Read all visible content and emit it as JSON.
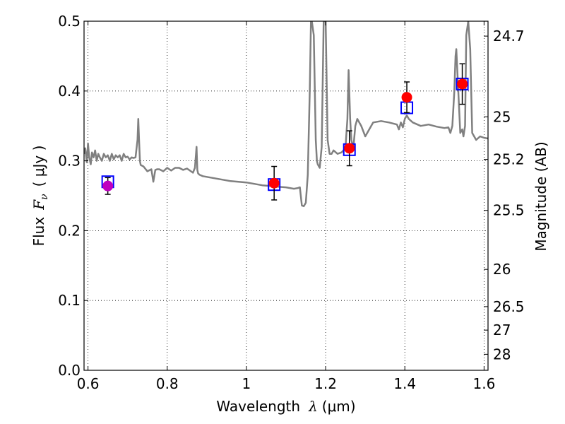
{
  "chart_data": {
    "type": "scatter",
    "xlabel": {
      "text": "Wavelength",
      "symbol": "λ",
      "unit": "(μm)"
    },
    "ylabel": {
      "text": "Flux",
      "symbol": "F",
      "subscript": "ν",
      "unit": "( μJy )"
    },
    "right_label": "Magnitude (AB)",
    "xlim": [
      0.59,
      1.61
    ],
    "ylim": [
      0.0,
      0.5
    ],
    "grid": true,
    "x_ticks": [
      0.6,
      0.8,
      1.0,
      1.2,
      1.4,
      1.6
    ],
    "x_tick_labels": [
      "0.6",
      "0.8",
      "1",
      "1.2",
      "1.4",
      "1.6"
    ],
    "y_ticks": [
      0.0,
      0.1,
      0.2,
      0.3,
      0.4,
      0.5
    ],
    "y_tick_labels": [
      "0.0",
      "0.1",
      "0.2",
      "0.3",
      "0.4",
      "0.5"
    ],
    "right_ticks": [
      24.7,
      25,
      25.2,
      25.5,
      26,
      26.5,
      27,
      28
    ],
    "right_tick_labels": [
      "24.7",
      "25",
      "25.2",
      "25.5",
      "26",
      "26.5",
      "27",
      "28"
    ],
    "colors": {
      "model": "#808080",
      "measured": "#ff0000",
      "optical": "#bf00bf",
      "model_box": "#0000ff",
      "errorbar": "#000000"
    },
    "model_spectrum": {
      "x": [
        0.59,
        0.593,
        0.597,
        0.6,
        0.603,
        0.607,
        0.61,
        0.614,
        0.618,
        0.622,
        0.626,
        0.63,
        0.635,
        0.64,
        0.645,
        0.65,
        0.655,
        0.66,
        0.665,
        0.67,
        0.675,
        0.68,
        0.685,
        0.69,
        0.695,
        0.7,
        0.705,
        0.71,
        0.715,
        0.72,
        0.725,
        0.727,
        0.729,
        0.731,
        0.733,
        0.74,
        0.75,
        0.76,
        0.765,
        0.77,
        0.775,
        0.78,
        0.79,
        0.8,
        0.81,
        0.82,
        0.83,
        0.84,
        0.85,
        0.86,
        0.865,
        0.87,
        0.874,
        0.876,
        0.878,
        0.882,
        0.89,
        0.9,
        0.92,
        0.94,
        0.96,
        0.98,
        1.0,
        1.02,
        1.04,
        1.06,
        1.08,
        1.1,
        1.12,
        1.13,
        1.135,
        1.14,
        1.145,
        1.15,
        1.155,
        1.16,
        1.163,
        1.165,
        1.17,
        1.175,
        1.178,
        1.18,
        1.185,
        1.19,
        1.195,
        1.2,
        1.205,
        1.21,
        1.215,
        1.22,
        1.23,
        1.24,
        1.25,
        1.255,
        1.258,
        1.262,
        1.265,
        1.27,
        1.275,
        1.28,
        1.29,
        1.3,
        1.32,
        1.34,
        1.36,
        1.38,
        1.385,
        1.39,
        1.395,
        1.4,
        1.405,
        1.41,
        1.42,
        1.44,
        1.46,
        1.48,
        1.5,
        1.51,
        1.515,
        1.52,
        1.525,
        1.528,
        1.53,
        1.535,
        1.54,
        1.545,
        1.548,
        1.552,
        1.555,
        1.56,
        1.565,
        1.57,
        1.58,
        1.59,
        1.6,
        1.61
      ],
      "y": [
        0.31,
        0.318,
        0.298,
        0.325,
        0.305,
        0.295,
        0.312,
        0.305,
        0.315,
        0.3,
        0.31,
        0.305,
        0.3,
        0.31,
        0.305,
        0.308,
        0.3,
        0.31,
        0.302,
        0.308,
        0.305,
        0.308,
        0.3,
        0.31,
        0.305,
        0.306,
        0.302,
        0.305,
        0.304,
        0.305,
        0.33,
        0.36,
        0.33,
        0.3,
        0.294,
        0.292,
        0.285,
        0.288,
        0.27,
        0.287,
        0.288,
        0.288,
        0.285,
        0.29,
        0.286,
        0.29,
        0.29,
        0.287,
        0.289,
        0.285,
        0.283,
        0.29,
        0.32,
        0.287,
        0.282,
        0.28,
        0.278,
        0.277,
        0.275,
        0.273,
        0.271,
        0.27,
        0.269,
        0.267,
        0.265,
        0.264,
        0.263,
        0.262,
        0.26,
        0.261,
        0.262,
        0.236,
        0.235,
        0.24,
        0.28,
        0.4,
        0.5,
        0.5,
        0.48,
        0.33,
        0.3,
        0.295,
        0.29,
        0.32,
        0.5,
        0.5,
        0.33,
        0.31,
        0.31,
        0.315,
        0.31,
        0.312,
        0.318,
        0.36,
        0.43,
        0.36,
        0.33,
        0.318,
        0.35,
        0.36,
        0.35,
        0.335,
        0.355,
        0.357,
        0.355,
        0.352,
        0.345,
        0.355,
        0.348,
        0.36,
        0.365,
        0.36,
        0.355,
        0.35,
        0.352,
        0.349,
        0.347,
        0.348,
        0.34,
        0.35,
        0.4,
        0.45,
        0.46,
        0.4,
        0.34,
        0.345,
        0.335,
        0.35,
        0.48,
        0.5,
        0.46,
        0.34,
        0.33,
        0.335,
        0.333,
        0.332
      ]
    },
    "series": [
      {
        "marker": "square",
        "color": "#0000ff",
        "x": [
          0.65,
          1.07,
          1.26,
          1.405,
          1.545
        ],
        "y": [
          0.27,
          0.266,
          0.316,
          0.376,
          0.41
        ]
      },
      {
        "marker": "circle",
        "color": "#ff0000",
        "x": [
          1.07,
          1.26,
          1.405,
          1.545
        ],
        "y": [
          0.268,
          0.318,
          0.391,
          0.41
        ],
        "err": [
          0.024,
          0.025,
          0.022,
          0.029
        ]
      },
      {
        "marker": "circle",
        "color": "#bf00bf",
        "x": [
          0.65
        ],
        "y": [
          0.264
        ],
        "err": [
          0.012
        ]
      }
    ]
  }
}
